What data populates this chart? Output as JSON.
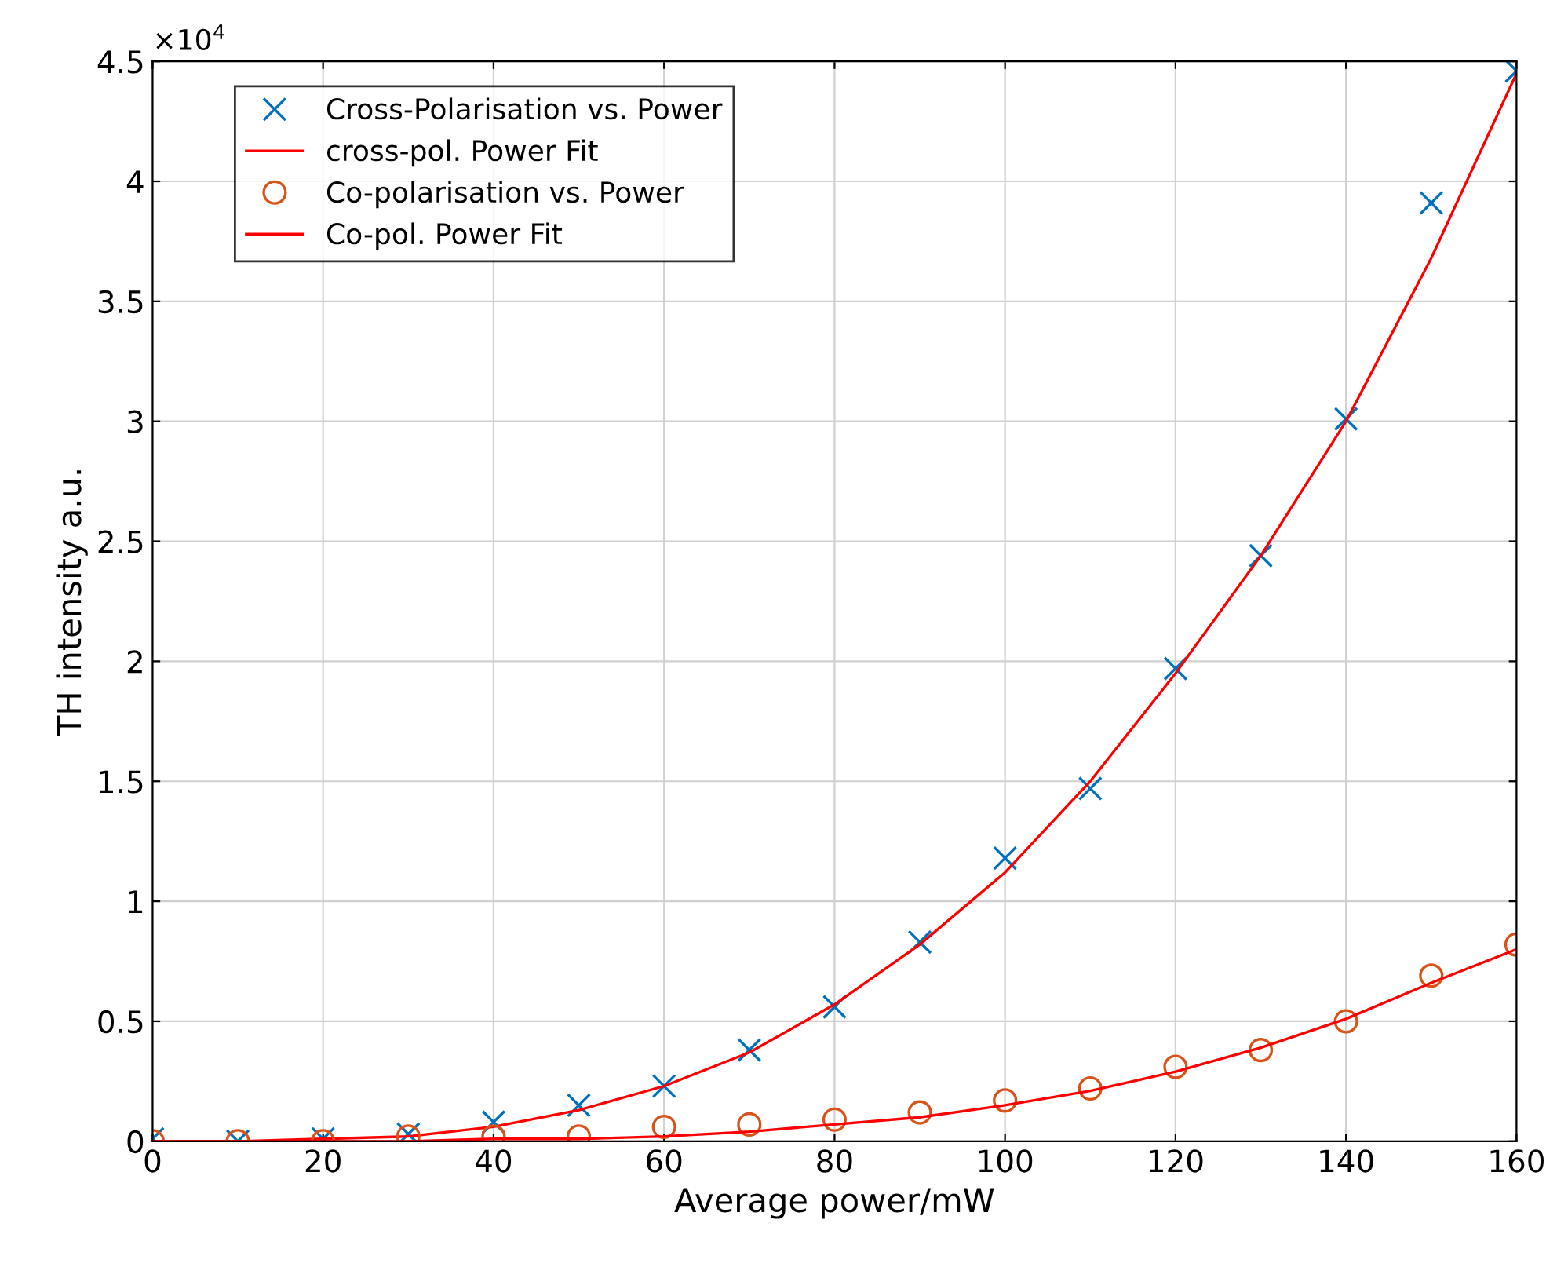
{
  "chart_data": {
    "type": "scatter",
    "xlabel": "Average power/mW",
    "ylabel": "TH intensity a.u.",
    "annotations": [
      "×10$^{4}$"
    ],
    "x": [
      0,
      10,
      20,
      30,
      40,
      50,
      60,
      70,
      80,
      90,
      100,
      110,
      120,
      130,
      140,
      150,
      160
    ],
    "series": [
      {
        "name": "Cross-Polarisation vs. Power",
        "marker": "cross",
        "color": "#0072bd",
        "values": [
          0.01,
          0.0,
          0.01,
          0.03,
          0.08,
          0.15,
          0.23,
          0.38,
          0.56,
          0.83,
          1.18,
          1.47,
          1.97,
          2.44,
          3.01,
          3.91,
          4.46
        ]
      },
      {
        "name": "cross-pol. Power Fit",
        "type": "line",
        "marker": "none",
        "color": "#ff0000",
        "values": [
          0.0,
          0.0,
          0.01,
          0.02,
          0.06,
          0.13,
          0.23,
          0.37,
          0.57,
          0.82,
          1.12,
          1.5,
          1.95,
          2.44,
          3.0,
          3.68,
          4.45
        ]
      },
      {
        "name": "Co-polarisation vs. Power",
        "marker": "circle",
        "color": "#d95319",
        "values": [
          0.0,
          0.0,
          0.0,
          0.02,
          0.02,
          0.02,
          0.06,
          0.07,
          0.09,
          0.12,
          0.17,
          0.22,
          0.31,
          0.38,
          0.5,
          0.69,
          0.82
        ]
      },
      {
        "name": "Co-pol. Power Fit",
        "type": "line",
        "marker": "none",
        "color": "#ff0000",
        "values": [
          0.0,
          0.0,
          0.0,
          0.0,
          0.01,
          0.01,
          0.02,
          0.04,
          0.07,
          0.1,
          0.15,
          0.21,
          0.29,
          0.39,
          0.51,
          0.66,
          0.8
        ]
      }
    ],
    "xlim": [
      0,
      160
    ],
    "xticks": [
      0,
      20,
      40,
      60,
      80,
      100,
      120,
      140,
      160
    ],
    "ylim": [
      0,
      4.5
    ],
    "yticks": [
      0,
      0.5,
      1,
      1.5,
      2,
      2.5,
      3,
      3.5,
      4,
      4.5
    ],
    "grid": true,
    "legend": "top left"
  }
}
